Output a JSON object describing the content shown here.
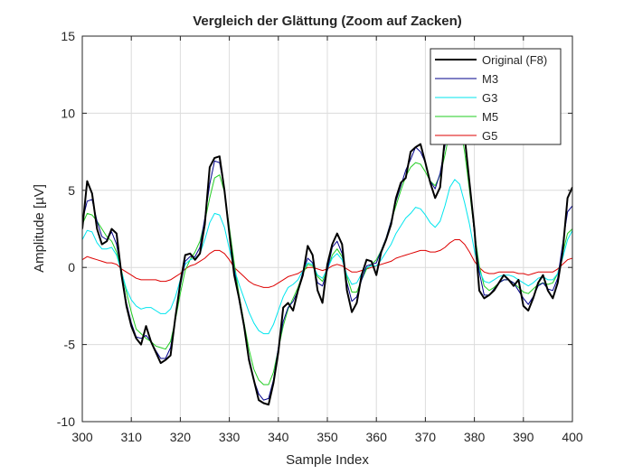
{
  "chart_data": {
    "type": "line",
    "title": "Vergleich der Glättung (Zoom auf Zacken)",
    "xlabel": "Sample Index",
    "ylabel": "Amplitude [µV]",
    "xlim": [
      300,
      400
    ],
    "ylim": [
      -10,
      15
    ],
    "xticks": [
      "300",
      "310",
      "320",
      "330",
      "340",
      "350",
      "360",
      "370",
      "380",
      "390",
      "400"
    ],
    "yticks": [
      "-10",
      "-5",
      "0",
      "5",
      "10",
      "15"
    ],
    "grid": true,
    "legend_position": "top-right",
    "x": [
      300,
      301,
      302,
      303,
      304,
      305,
      306,
      307,
      308,
      309,
      310,
      311,
      312,
      313,
      314,
      315,
      316,
      317,
      318,
      319,
      320,
      321,
      322,
      323,
      324,
      325,
      326,
      327,
      328,
      329,
      330,
      331,
      332,
      333,
      334,
      335,
      336,
      337,
      338,
      339,
      340,
      341,
      342,
      343,
      344,
      345,
      346,
      347,
      348,
      349,
      350,
      351,
      352,
      353,
      354,
      355,
      356,
      357,
      358,
      359,
      360,
      361,
      362,
      363,
      364,
      365,
      366,
      367,
      368,
      369,
      370,
      371,
      372,
      373,
      374,
      375,
      376,
      377,
      378,
      379,
      380,
      381,
      382,
      383,
      384,
      385,
      386,
      387,
      388,
      389,
      390,
      391,
      392,
      393,
      394,
      395,
      396,
      397,
      398,
      399,
      400
    ],
    "series": [
      {
        "name": "Original (F8)",
        "color": "#000000",
        "values": [
          2.5,
          5.6,
          4.8,
          2.5,
          1.5,
          1.7,
          2.5,
          2.2,
          -0.5,
          -2.5,
          -3.8,
          -4.6,
          -5.0,
          -3.8,
          -4.8,
          -5.5,
          -6.2,
          -6.0,
          -5.7,
          -3.2,
          -1.0,
          0.8,
          0.9,
          0.5,
          0.9,
          2.8,
          6.5,
          7.1,
          7.2,
          5.0,
          2.2,
          -0.5,
          -2.0,
          -3.8,
          -6.0,
          -7.3,
          -8.6,
          -8.8,
          -8.9,
          -7.5,
          -5.5,
          -2.6,
          -2.3,
          -2.8,
          -1.5,
          -0.5,
          1.4,
          0.8,
          -1.5,
          -2.3,
          0.2,
          1.5,
          2.2,
          1.5,
          -1.5,
          -2.9,
          -2.3,
          -0.5,
          0.5,
          0.4,
          -0.5,
          1.0,
          1.8,
          2.8,
          4.5,
          5.5,
          5.8,
          7.5,
          7.8,
          8.0,
          6.8,
          5.5,
          4.5,
          5.2,
          8.5,
          10.0,
          12.5,
          11.0,
          8.5,
          5.5,
          2.5,
          -1.5,
          -2.0,
          -1.8,
          -1.5,
          -1.0,
          -0.5,
          -0.8,
          -1.2,
          -0.8,
          -2.5,
          -2.8,
          -2.0,
          -1.0,
          -0.5,
          -1.5,
          -2.0,
          -1.0,
          1.0,
          4.5,
          5.2
        ]
      },
      {
        "name": "M3",
        "color": "#00008b",
        "values": [
          3.0,
          4.3,
          4.4,
          3.0,
          2.0,
          1.8,
          2.3,
          1.5,
          -0.3,
          -2.3,
          -3.6,
          -4.5,
          -4.6,
          -4.4,
          -4.8,
          -5.4,
          -5.9,
          -5.9,
          -5.2,
          -3.3,
          -1.2,
          0.4,
          0.7,
          0.7,
          1.3,
          3.2,
          5.4,
          6.9,
          6.8,
          5.1,
          2.3,
          -0.1,
          -2.1,
          -3.9,
          -5.8,
          -7.3,
          -8.2,
          -8.6,
          -8.5,
          -7.3,
          -5.2,
          -3.5,
          -2.6,
          -2.2,
          -1.5,
          -0.3,
          0.6,
          0.3,
          -1.0,
          -1.2,
          -0.2,
          1.3,
          1.7,
          0.9,
          -1.0,
          -2.2,
          -1.9,
          -0.8,
          0.1,
          0.2,
          0.3,
          1.1,
          1.9,
          3.0,
          4.3,
          5.3,
          6.3,
          7.0,
          7.8,
          7.5,
          6.8,
          5.6,
          5.1,
          6.1,
          7.9,
          10.3,
          11.2,
          10.7,
          8.3,
          5.5,
          2.2,
          -0.3,
          -1.8,
          -1.8,
          -1.4,
          -1.0,
          -0.8,
          -0.8,
          -1.0,
          -1.5,
          -2.0,
          -2.4,
          -1.9,
          -1.2,
          -1.0,
          -1.4,
          -1.5,
          -0.7,
          1.5,
          3.6,
          4.0
        ]
      },
      {
        "name": "G3",
        "color": "#00e5ee",
        "values": [
          1.8,
          2.4,
          2.3,
          1.6,
          1.2,
          1.2,
          1.3,
          0.8,
          -0.3,
          -1.4,
          -2.1,
          -2.5,
          -2.7,
          -2.6,
          -2.6,
          -2.8,
          -3.0,
          -3.0,
          -2.7,
          -1.9,
          -0.8,
          0.2,
          0.5,
          0.6,
          0.9,
          1.8,
          2.9,
          3.5,
          3.4,
          2.6,
          1.2,
          -0.1,
          -1.1,
          -2.0,
          -2.9,
          -3.6,
          -4.1,
          -4.3,
          -4.3,
          -3.7,
          -2.8,
          -1.9,
          -1.3,
          -1.1,
          -0.8,
          -0.2,
          0.3,
          0.2,
          -0.5,
          -0.7,
          -0.1,
          0.6,
          0.9,
          0.5,
          -0.5,
          -1.1,
          -1.0,
          -0.4,
          0.0,
          0.1,
          0.1,
          0.5,
          1.0,
          1.5,
          2.2,
          2.7,
          3.2,
          3.5,
          3.9,
          3.8,
          3.4,
          2.9,
          2.6,
          3.0,
          4.0,
          5.2,
          5.7,
          5.4,
          4.2,
          2.8,
          1.1,
          -0.2,
          -0.9,
          -1.0,
          -0.8,
          -0.6,
          -0.5,
          -0.5,
          -0.6,
          -0.8,
          -1.0,
          -1.2,
          -1.0,
          -0.7,
          -0.6,
          -0.8,
          -0.8,
          -0.4,
          0.6,
          1.8,
          2.4
        ]
      },
      {
        "name": "M5",
        "color": "#22cc22",
        "values": [
          2.8,
          3.5,
          3.4,
          3.0,
          2.5,
          2.0,
          1.7,
          1.0,
          -0.2,
          -1.6,
          -2.9,
          -4.0,
          -4.3,
          -4.6,
          -4.8,
          -5.1,
          -5.2,
          -5.3,
          -4.8,
          -3.4,
          -1.7,
          -0.2,
          0.5,
          1.0,
          1.7,
          3.0,
          4.5,
          5.8,
          6.0,
          4.9,
          2.6,
          0.3,
          -1.8,
          -3.6,
          -5.3,
          -6.6,
          -7.3,
          -7.6,
          -7.6,
          -6.8,
          -5.3,
          -3.8,
          -2.7,
          -2.0,
          -1.3,
          -0.4,
          0.2,
          0.1,
          -0.6,
          -0.9,
          -0.2,
          0.8,
          1.2,
          0.7,
          -0.6,
          -1.6,
          -1.6,
          -0.8,
          -0.1,
          0.2,
          0.5,
          1.1,
          1.9,
          3.0,
          4.0,
          5.0,
          5.9,
          6.5,
          6.8,
          6.7,
          6.2,
          5.6,
          5.3,
          6.0,
          7.3,
          8.9,
          9.8,
          9.4,
          7.5,
          5.0,
          2.3,
          0.1,
          -1.2,
          -1.5,
          -1.3,
          -1.0,
          -0.8,
          -0.8,
          -1.0,
          -1.3,
          -1.6,
          -1.7,
          -1.4,
          -1.1,
          -1.0,
          -1.1,
          -1.0,
          -0.4,
          0.9,
          2.2,
          2.5
        ]
      },
      {
        "name": "G5",
        "color": "#dd0000",
        "values": [
          0.5,
          0.7,
          0.6,
          0.5,
          0.4,
          0.3,
          0.3,
          0.2,
          -0.1,
          -0.3,
          -0.5,
          -0.7,
          -0.8,
          -0.8,
          -0.8,
          -0.8,
          -0.9,
          -0.9,
          -0.8,
          -0.6,
          -0.4,
          -0.1,
          0.1,
          0.2,
          0.4,
          0.6,
          0.9,
          1.1,
          1.1,
          0.9,
          0.5,
          0.0,
          -0.3,
          -0.6,
          -0.9,
          -1.1,
          -1.2,
          -1.3,
          -1.3,
          -1.2,
          -1.0,
          -0.8,
          -0.6,
          -0.5,
          -0.4,
          -0.2,
          0.0,
          0.0,
          -0.1,
          -0.2,
          -0.1,
          0.1,
          0.2,
          0.1,
          -0.1,
          -0.3,
          -0.3,
          -0.2,
          -0.1,
          0.0,
          0.1,
          0.2,
          0.3,
          0.4,
          0.6,
          0.7,
          0.8,
          0.9,
          1.0,
          1.1,
          1.1,
          1.0,
          1.0,
          1.1,
          1.3,
          1.6,
          1.8,
          1.8,
          1.5,
          1.0,
          0.4,
          0.0,
          -0.3,
          -0.4,
          -0.4,
          -0.3,
          -0.3,
          -0.3,
          -0.3,
          -0.4,
          -0.4,
          -0.5,
          -0.4,
          -0.3,
          -0.3,
          -0.3,
          -0.3,
          -0.1,
          0.2,
          0.5,
          0.6
        ]
      }
    ]
  }
}
